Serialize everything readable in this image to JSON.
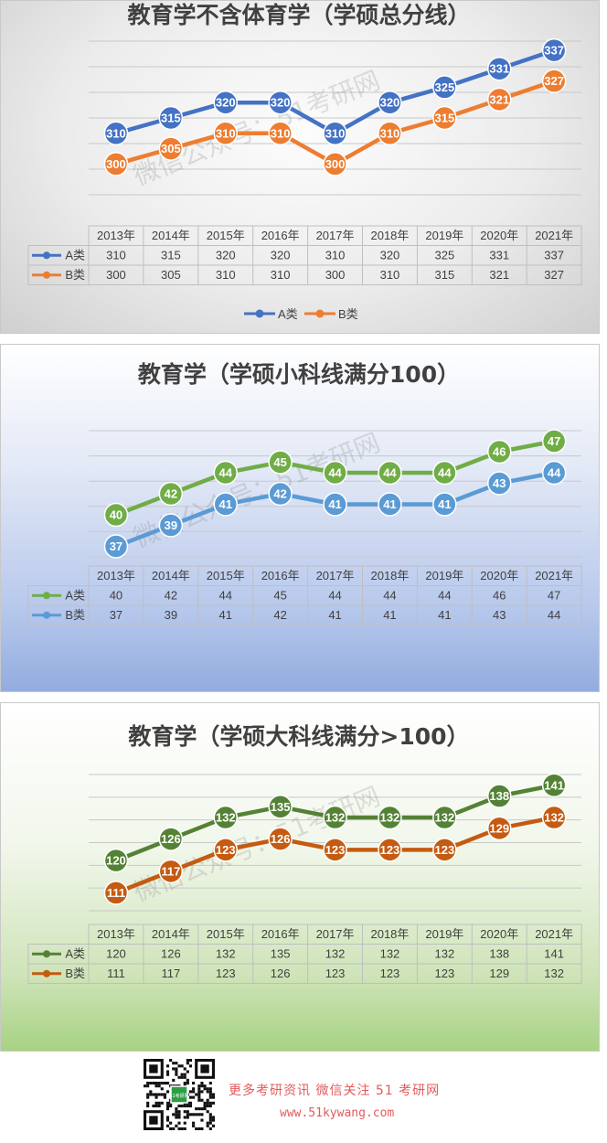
{
  "watermark": {
    "text": "微信公众号：51考研网",
    "qr_badge": "51考研网"
  },
  "footer": {
    "line1": "更多考研资讯 微信关注 51 考研网",
    "line2": "www.51kywang.com"
  },
  "chart_data": [
    {
      "type": "line",
      "title": "教育学不含体育学（学硕总分线）",
      "categories": [
        "2013年",
        "2014年",
        "2015年",
        "2016年",
        "2017年",
        "2018年",
        "2019年",
        "2020年",
        "2021年"
      ],
      "series": [
        {
          "name": "A类",
          "color": "#4472c4",
          "values": [
            310,
            315,
            320,
            320,
            310,
            320,
            325,
            331,
            337
          ]
        },
        {
          "name": "B类",
          "color": "#ed7d31",
          "values": [
            300,
            305,
            310,
            310,
            300,
            310,
            315,
            321,
            327
          ]
        }
      ],
      "ylim": [
        290,
        340
      ],
      "gridlines": true,
      "data_table": true,
      "legend": "bottom"
    },
    {
      "type": "line",
      "title": "教育学（学硕小科线满分100）",
      "categories": [
        "2013年",
        "2014年",
        "2015年",
        "2016年",
        "2017年",
        "2018年",
        "2019年",
        "2020年",
        "2021年"
      ],
      "series": [
        {
          "name": "A类",
          "color": "#70ad47",
          "values": [
            40,
            42,
            44,
            45,
            44,
            44,
            44,
            46,
            47
          ]
        },
        {
          "name": "B类",
          "color": "#5b9bd5",
          "values": [
            37,
            39,
            41,
            42,
            41,
            41,
            41,
            43,
            44
          ]
        }
      ],
      "ylim": [
        36,
        48
      ],
      "gridlines": true,
      "data_table": true,
      "legend": "table"
    },
    {
      "type": "line",
      "title": "教育学（学硕大科线满分>100）",
      "categories": [
        "2013年",
        "2014年",
        "2015年",
        "2016年",
        "2017年",
        "2018年",
        "2019年",
        "2020年",
        "2021年"
      ],
      "series": [
        {
          "name": "A类",
          "color": "#548235",
          "values": [
            120,
            126,
            132,
            135,
            132,
            132,
            132,
            138,
            141
          ]
        },
        {
          "name": "B类",
          "color": "#c55a11",
          "values": [
            111,
            117,
            123,
            126,
            123,
            123,
            123,
            129,
            132
          ]
        }
      ],
      "ylim": [
        106,
        144
      ],
      "gridlines": true,
      "data_table": true,
      "legend": "table"
    }
  ]
}
